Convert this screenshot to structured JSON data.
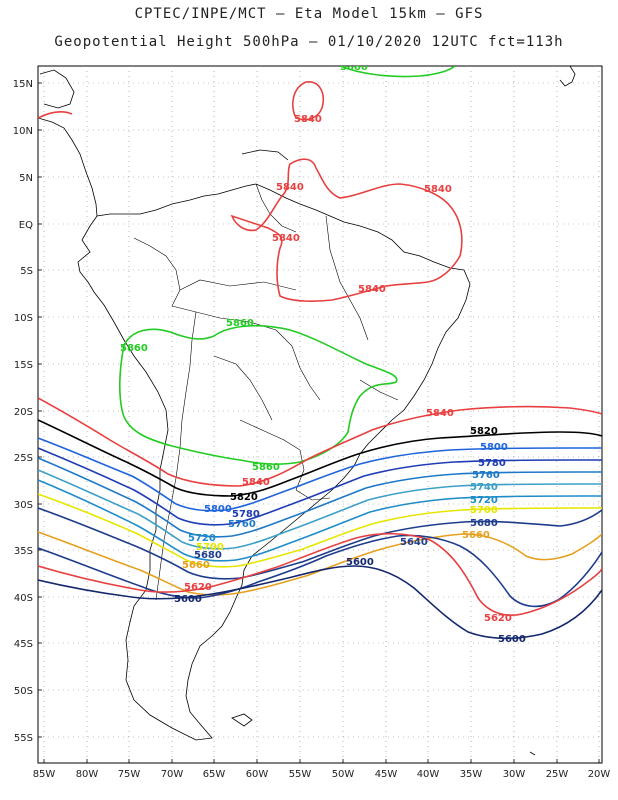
{
  "header": {
    "line1": "CPTEC/INPE/MCT –  Eta Model 15km – GFS",
    "line2": "Geopotential Height 500hPa – 01/10/2020 12UTC fct=113h"
  },
  "map": {
    "lat_labels": [
      "15N",
      "10N",
      "5N",
      "EQ",
      "5S",
      "10S",
      "15S",
      "20S",
      "25S",
      "30S",
      "35S",
      "40S",
      "45S",
      "50S",
      "55S"
    ],
    "lon_labels": [
      "85W",
      "80W",
      "75W",
      "70W",
      "65W",
      "60W",
      "55W",
      "50W",
      "45W",
      "40W",
      "35W",
      "30W",
      "25W",
      "20W"
    ],
    "grid": true
  },
  "contours": [
    {
      "label": "5880",
      "color": "#22cc22"
    },
    {
      "label": "5860",
      "color": "#22cc22"
    },
    {
      "label": "5840",
      "color": "#e84040"
    },
    {
      "label": "5820",
      "color": "#000000"
    },
    {
      "label": "5800",
      "color": "#1e64dc"
    },
    {
      "label": "5780",
      "color": "#1e3cb4"
    },
    {
      "label": "5760",
      "color": "#1e78c8"
    },
    {
      "label": "5740",
      "color": "#3ca0c8"
    },
    {
      "label": "5720",
      "color": "#1e8cc8"
    },
    {
      "label": "5700",
      "color": "#e6e600"
    },
    {
      "label": "5680",
      "color": "#1e3c8c"
    },
    {
      "label": "5660",
      "color": "#e6a01e"
    },
    {
      "label": "5640",
      "color": "#1e3c8c"
    },
    {
      "label": "5620",
      "color": "#e84040"
    },
    {
      "label": "5600",
      "color": "#14286e"
    }
  ]
}
